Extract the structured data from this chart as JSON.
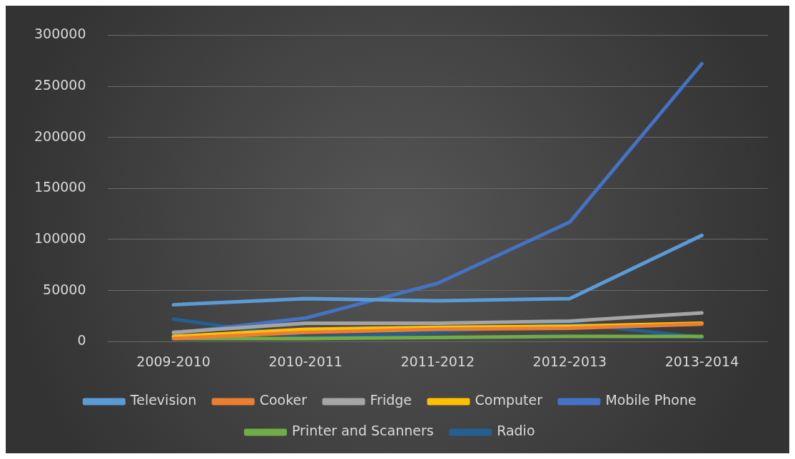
{
  "chart_data": {
    "type": "line",
    "categories": [
      "2009-2010",
      "2010-2011",
      "2011-2012",
      "2012-2013",
      "2013-2014"
    ],
    "series": [
      {
        "name": "Television",
        "color": "#5b9bd5",
        "values": [
          36000,
          42000,
          40000,
          42000,
          104000
        ]
      },
      {
        "name": "Cooker",
        "color": "#ed7d31",
        "values": [
          3000,
          9000,
          12000,
          13000,
          17000
        ]
      },
      {
        "name": "Fridge",
        "color": "#a5a5a5",
        "values": [
          9000,
          18000,
          18000,
          20000,
          28000
        ]
      },
      {
        "name": "Computer",
        "color": "#ffc000",
        "values": [
          5000,
          12000,
          14000,
          15000,
          18000
        ]
      },
      {
        "name": "Mobile Phone",
        "color": "#4472c4",
        "values": [
          8000,
          23000,
          57000,
          117000,
          272000
        ]
      },
      {
        "name": "Printer and Scanners",
        "color": "#70ad47",
        "values": [
          3000,
          3000,
          4000,
          5000,
          5000
        ]
      },
      {
        "name": "Radio",
        "color": "#255e91",
        "values": [
          22000,
          4000,
          9000,
          18000,
          4000
        ]
      }
    ],
    "ylim": [
      0,
      300000
    ],
    "yticks": [
      0,
      50000,
      100000,
      150000,
      200000,
      250000,
      300000
    ],
    "grid": "y",
    "legend": "bottom",
    "marker": "none",
    "line_style": "solid"
  }
}
